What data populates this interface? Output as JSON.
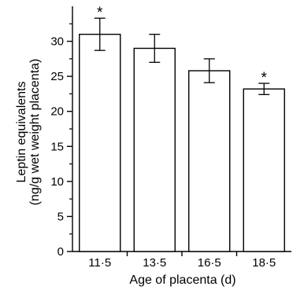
{
  "chart_data": {
    "type": "bar",
    "categories": [
      "11·5",
      "13·5",
      "16·5",
      "18·5"
    ],
    "values": [
      31.0,
      29.0,
      25.8,
      23.2
    ],
    "errors": [
      2.3,
      2.0,
      1.7,
      0.8
    ],
    "significance": [
      "*",
      "",
      "",
      "*"
    ],
    "xlabel": "Age of placenta (d)",
    "ylabel_lines": [
      "Leptin equivalents",
      "(ng/g wet weight placenta)"
    ],
    "ylim": [
      0,
      35
    ],
    "yticks": [
      0,
      5,
      10,
      15,
      20,
      25,
      30
    ],
    "ytick_labels": [
      "0",
      "5",
      "10",
      "15",
      "20",
      "25",
      "30"
    ],
    "bar_fill": "#ffffff",
    "bar_stroke": "#000000",
    "grid": false
  }
}
